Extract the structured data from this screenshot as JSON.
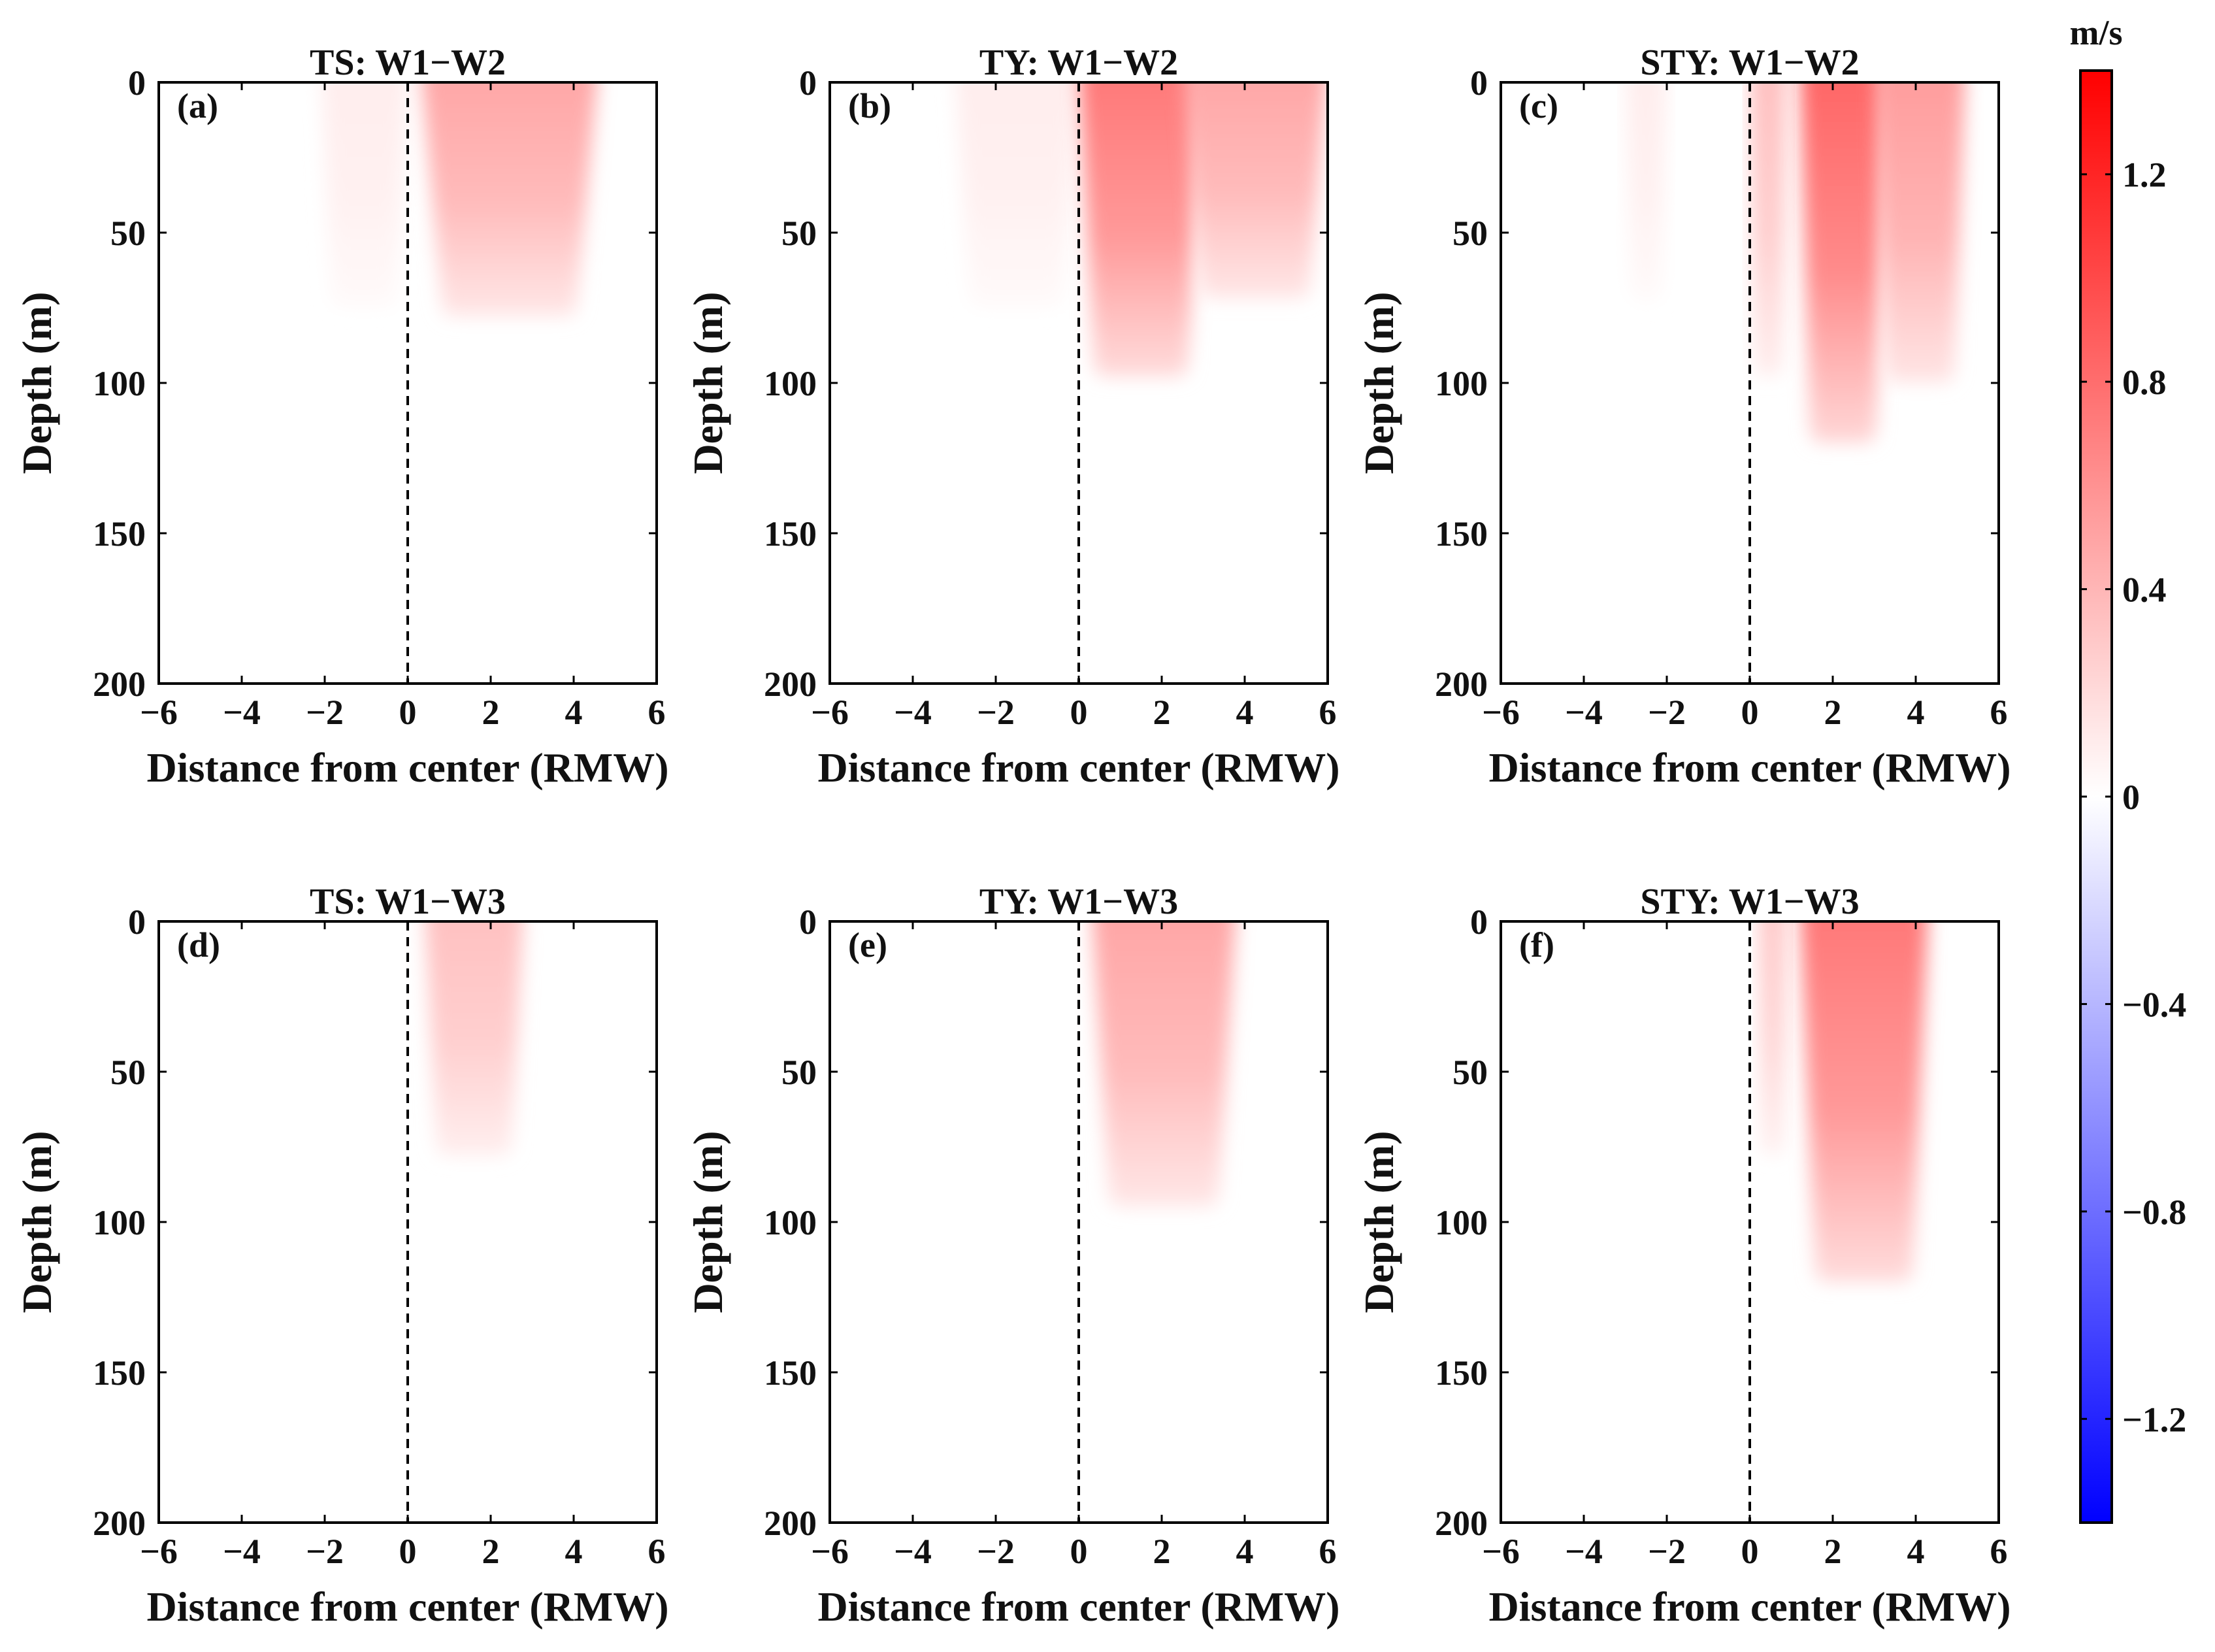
{
  "colorbar": {
    "unit": "m/s",
    "range": [
      -1.4,
      1.4
    ],
    "ticks": [
      1.2,
      0.8,
      0.4,
      0,
      -0.4,
      -0.8,
      -1.2
    ],
    "tick_labels": [
      "1.2",
      "0.8",
      "0.4",
      "0",
      "−0.4",
      "−0.8",
      "−1.2"
    ],
    "colors": {
      "max": "#ff0000",
      "mid": "#ffffff",
      "min": "#0000ff"
    }
  },
  "chart_data": [
    {
      "type": "heatmap",
      "panel": "(a)",
      "title": "TS: W1−W2",
      "xlabel": "Distance from center (RMW)",
      "ylabel": "Depth (m)",
      "xlim": [
        -6,
        6
      ],
      "ylim": [
        0,
        200
      ],
      "y_reversed": true,
      "xticks": [
        -6,
        -4,
        -2,
        0,
        2,
        4,
        6
      ],
      "xtick_labels": [
        "−6",
        "−4",
        "−2",
        "0",
        "2",
        "4",
        "6"
      ],
      "yticks": [
        0,
        50,
        100,
        150,
        200
      ],
      "ytick_labels": [
        "0",
        "50",
        "100",
        "150",
        "200"
      ],
      "center_line_x": 0,
      "features": [
        {
          "x0": -2.1,
          "x1": 0,
          "depth": 75,
          "peak": 0.1
        },
        {
          "x0": 0.3,
          "x1": 4.6,
          "depth": 78,
          "peak": 0.5
        }
      ]
    },
    {
      "type": "heatmap",
      "panel": "(b)",
      "title": "TY: W1−W2",
      "xlabel": "Distance from center (RMW)",
      "ylabel": "Depth (m)",
      "xlim": [
        -6,
        6
      ],
      "ylim": [
        0,
        200
      ],
      "y_reversed": true,
      "xticks": [
        -6,
        -4,
        -2,
        0,
        2,
        4,
        6
      ],
      "xtick_labels": [
        "−6",
        "−4",
        "−2",
        "0",
        "2",
        "4",
        "6"
      ],
      "yticks": [
        0,
        50,
        100,
        150,
        200
      ],
      "ytick_labels": [
        "0",
        "50",
        "100",
        "150",
        "200"
      ],
      "center_line_x": 0,
      "features": [
        {
          "x0": -3.0,
          "x1": 0,
          "depth": 75,
          "peak": 0.1
        },
        {
          "x0": 0,
          "x1": 3.0,
          "depth": 98,
          "peak": 0.75
        },
        {
          "x0": 2.5,
          "x1": 6.0,
          "depth": 72,
          "peak": 0.5
        }
      ]
    },
    {
      "type": "heatmap",
      "panel": "(c)",
      "title": "STY: W1−W2",
      "xlabel": "Distance from center (RMW)",
      "ylabel": "Depth (m)",
      "xlim": [
        -6,
        6
      ],
      "ylim": [
        0,
        200
      ],
      "y_reversed": true,
      "xticks": [
        -6,
        -4,
        -2,
        0,
        2,
        4,
        6
      ],
      "xtick_labels": [
        "−6",
        "−4",
        "−2",
        "0",
        "2",
        "4",
        "6"
      ],
      "yticks": [
        0,
        50,
        100,
        150,
        200
      ],
      "ytick_labels": [
        "0",
        "50",
        "100",
        "150",
        "200"
      ],
      "center_line_x": 0,
      "features": [
        {
          "x0": -3.0,
          "x1": -2.0,
          "depth": 73,
          "peak": 0.1
        },
        {
          "x0": 0,
          "x1": 0.9,
          "depth": 98,
          "peak": 0.35
        },
        {
          "x0": 1.2,
          "x1": 3.3,
          "depth": 120,
          "peak": 0.85
        },
        {
          "x0": 3.0,
          "x1": 5.2,
          "depth": 100,
          "peak": 0.55
        }
      ]
    },
    {
      "type": "heatmap",
      "panel": "(d)",
      "title": "TS: W1−W3",
      "xlabel": "Distance from center (RMW)",
      "ylabel": "Depth (m)",
      "xlim": [
        -6,
        6
      ],
      "ylim": [
        0,
        200
      ],
      "y_reversed": true,
      "xticks": [
        -6,
        -4,
        -2,
        0,
        2,
        4,
        6
      ],
      "xtick_labels": [
        "−6",
        "−4",
        "−2",
        "0",
        "2",
        "4",
        "6"
      ],
      "yticks": [
        0,
        50,
        100,
        150,
        200
      ],
      "ytick_labels": [
        "0",
        "50",
        "100",
        "150",
        "200"
      ],
      "center_line_x": 0,
      "features": [
        {
          "x0": 0.4,
          "x1": 2.8,
          "depth": 78,
          "peak": 0.35
        }
      ]
    },
    {
      "type": "heatmap",
      "panel": "(e)",
      "title": "TY: W1−W3",
      "xlabel": "Distance from center (RMW)",
      "ylabel": "Depth (m)",
      "xlim": [
        -6,
        6
      ],
      "ylim": [
        0,
        200
      ],
      "y_reversed": true,
      "xticks": [
        -6,
        -4,
        -2,
        0,
        2,
        4,
        6
      ],
      "xtick_labels": [
        "−6",
        "−4",
        "−2",
        "0",
        "2",
        "4",
        "6"
      ],
      "yticks": [
        0,
        50,
        100,
        150,
        200
      ],
      "ytick_labels": [
        "0",
        "50",
        "100",
        "150",
        "200"
      ],
      "center_line_x": 0,
      "features": [
        {
          "x0": 0.3,
          "x1": 3.8,
          "depth": 95,
          "peak": 0.5
        }
      ]
    },
    {
      "type": "heatmap",
      "panel": "(f)",
      "title": "STY: W1−W3",
      "xlabel": "Distance from center (RMW)",
      "ylabel": "Depth (m)",
      "xlim": [
        -6,
        6
      ],
      "ylim": [
        0,
        200
      ],
      "y_reversed": true,
      "xticks": [
        -6,
        -4,
        -2,
        0,
        2,
        4,
        6
      ],
      "xtick_labels": [
        "−6",
        "−4",
        "−2",
        "0",
        "2",
        "4",
        "6"
      ],
      "yticks": [
        0,
        50,
        100,
        150,
        200
      ],
      "ytick_labels": [
        "0",
        "50",
        "100",
        "150",
        "200"
      ],
      "center_line_x": 0,
      "features": [
        {
          "x0": 0.2,
          "x1": 0.9,
          "depth": 78,
          "peak": 0.3
        },
        {
          "x0": 1.2,
          "x1": 4.3,
          "depth": 120,
          "peak": 0.75
        }
      ]
    }
  ]
}
